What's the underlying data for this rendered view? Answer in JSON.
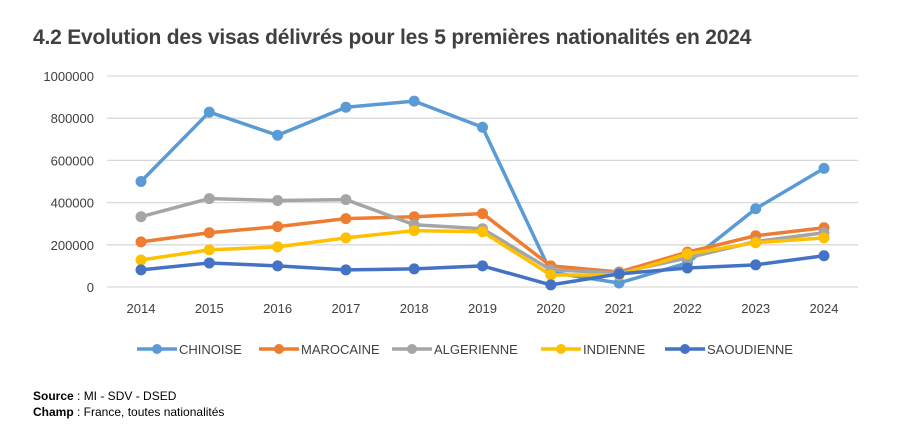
{
  "title": "4.2 Evolution des visas délivrés pour les 5 premières nationalités en 2024",
  "footer": {
    "source_label": "Source",
    "source_value": " : MI - SDV - DSED",
    "champ_label": "Champ",
    "champ_value": " : France, toutes nationalités"
  },
  "chart_data": {
    "type": "line",
    "title": "4.2 Evolution des visas délivrés pour les 5 premières nationalités en 2024",
    "xlabel": "",
    "ylabel": "",
    "categories": [
      "2014",
      "2015",
      "2016",
      "2017",
      "2018",
      "2019",
      "2020",
      "2021",
      "2022",
      "2023",
      "2024"
    ],
    "ylim": [
      0,
      1000000
    ],
    "yticks": [
      0,
      200000,
      400000,
      600000,
      800000,
      1000000
    ],
    "ytick_labels": [
      "0",
      "200000",
      "400000",
      "600000",
      "800000",
      "1000000"
    ],
    "grid": true,
    "legend_position": "bottom",
    "series": [
      {
        "name": "CHINOISE",
        "color": "#5B9BD5",
        "values": [
          500000,
          829000,
          719000,
          852000,
          881000,
          757000,
          70000,
          19000,
          114000,
          371000,
          562000
        ]
      },
      {
        "name": "MAROCAINE",
        "color": "#ED7D31",
        "values": [
          214000,
          257000,
          286000,
          324000,
          333000,
          348000,
          100000,
          71000,
          165000,
          243000,
          281000
        ]
      },
      {
        "name": "ALGERIENNE",
        "color": "#A5A5A5",
        "values": [
          333000,
          419000,
          410000,
          414000,
          295000,
          276000,
          81000,
          67000,
          138000,
          215000,
          257000
        ]
      },
      {
        "name": "INDIENNE",
        "color": "#FFC000",
        "values": [
          128000,
          176000,
          190000,
          233000,
          267000,
          262000,
          57000,
          57000,
          157000,
          210000,
          233000
        ]
      },
      {
        "name": "SAOUDIENNE",
        "color": "#4472C4",
        "values": [
          81000,
          114000,
          100000,
          81000,
          86000,
          100000,
          10000,
          62000,
          90000,
          105000,
          148000
        ]
      }
    ]
  }
}
